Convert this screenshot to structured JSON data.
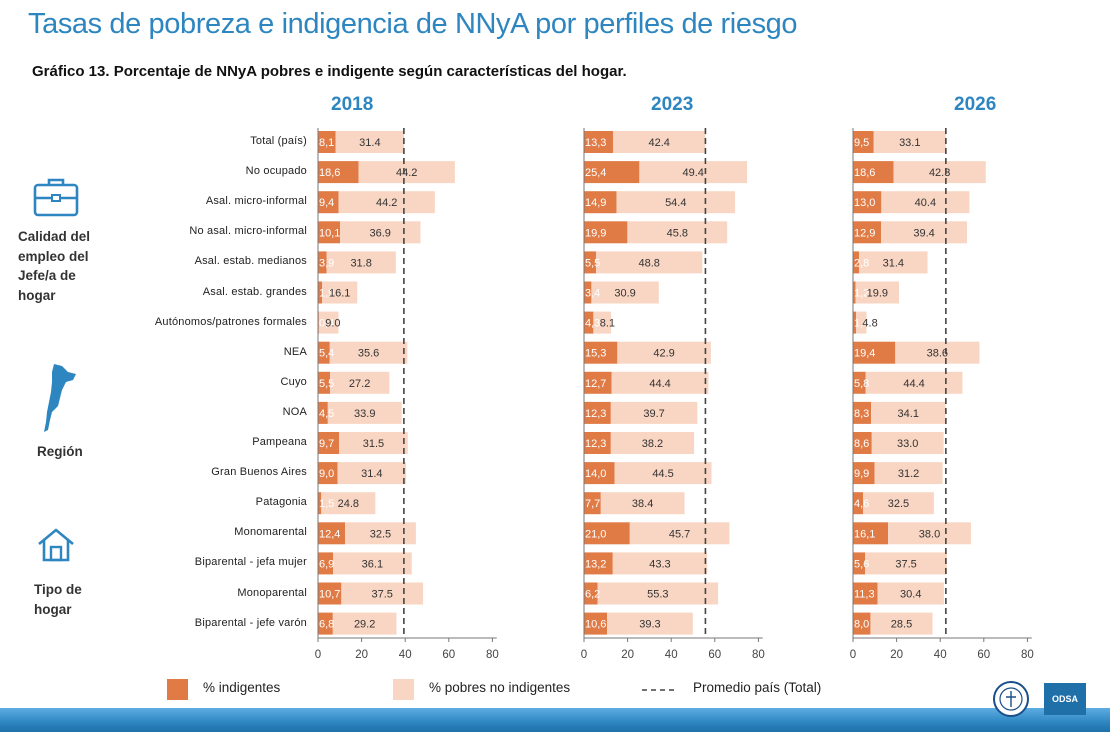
{
  "header": {
    "title": "Tasas de pobreza e indigencia de NNyA por perfiles de riesgo",
    "subtitle": "Gráfico 13. Porcentaje de NNyA pobres e indigente según características del hogar."
  },
  "groups": [
    {
      "label_lines": [
        "Calidad del",
        "empleo del",
        "Jefe/a de",
        "hogar"
      ],
      "icon": "briefcase-icon"
    },
    {
      "label_lines": [
        "Región"
      ],
      "icon": "argentina-map-icon"
    },
    {
      "label_lines": [
        "Tipo de",
        "hogar"
      ],
      "icon": "house-icon"
    }
  ],
  "legend": {
    "indigentes": "% indigentes",
    "pobres": "% pobres no indigentes",
    "promedio": "Promedio país (Total)"
  },
  "logos": {
    "odsa": "ODSA"
  },
  "colors": {
    "indigentes": "#e07b46",
    "pobres": "#f9d6c3",
    "accent": "#2e86c1"
  },
  "chart_data": {
    "type": "bar",
    "orientation": "horizontal",
    "stacked": true,
    "categories": [
      "Total (país)",
      "No ocupado",
      "Asal. micro-informal",
      "No asal. micro-informal",
      "Asal. estab. medianos",
      "Asal. estab. grandes",
      "Autónomos/patrones formales",
      "NEA",
      "Cuyo",
      "NOA",
      "Pampeana",
      "Gran Buenos Aires",
      "Patagonia",
      "Monomarental",
      "Biparental - jefa mujer",
      "Monoparental",
      "Biparental - jefe varón"
    ],
    "xlim": [
      0,
      80
    ],
    "xticks": [
      "0",
      "20",
      "40",
      "60",
      "80"
    ],
    "panels": [
      {
        "title": "2018",
        "average": 39.4,
        "indigentes": [
          8.1,
          18.6,
          9.4,
          10.1,
          3.9,
          1.9,
          0.4,
          5.4,
          5.5,
          4.5,
          9.7,
          9.0,
          1.5,
          12.4,
          6.9,
          10.7,
          6.8
        ],
        "indigentes_labels": [
          "8,1",
          "18,6",
          "9,4",
          "10,1",
          "3,9",
          "1,9",
          "0,4",
          "5,4",
          "5,5",
          "4,5",
          "9,7",
          "9,0",
          "1,5",
          "12,4",
          "6,9",
          "10,7",
          "6,8"
        ],
        "pobres": [
          31.4,
          44.2,
          44.2,
          36.9,
          31.8,
          16.1,
          9.0,
          35.6,
          27.2,
          33.9,
          31.5,
          31.4,
          24.8,
          32.5,
          36.1,
          37.5,
          29.2
        ],
        "pobres_labels": [
          "31.4",
          "44.2",
          "44.2",
          "36.9",
          "31.8",
          "16.1",
          "9.0",
          "35.6",
          "27.2",
          "33.9",
          "31.5",
          "31.4",
          "24.8",
          "32.5",
          "36.1",
          "37.5",
          "29.2"
        ]
      },
      {
        "title": "2023",
        "average": 55.7,
        "indigentes": [
          13.3,
          25.4,
          14.9,
          19.9,
          5.5,
          3.4,
          4.3,
          15.3,
          12.7,
          12.3,
          12.3,
          14.0,
          7.7,
          21.0,
          13.2,
          6.2,
          10.6
        ],
        "indigentes_labels": [
          "13,3",
          "25,4",
          "14,9",
          "19,9",
          "5,5",
          "3,4",
          "4,3",
          "15,3",
          "12,7",
          "12,3",
          "12,3",
          "14,0",
          "7,7",
          "21,0",
          "13,2",
          "6,2",
          "10,6"
        ],
        "pobres": [
          42.4,
          49.4,
          54.4,
          45.8,
          48.8,
          30.9,
          8.1,
          42.9,
          44.4,
          39.7,
          38.2,
          44.5,
          38.4,
          45.7,
          43.3,
          55.3,
          39.3
        ],
        "pobres_labels": [
          "42.4",
          "49.4",
          "54.4",
          "45.8",
          "48.8",
          "30.9",
          "8.1",
          "42.9",
          "44.4",
          "39.7",
          "38.2",
          "44.5",
          "38.4",
          "45.7",
          "43.3",
          "55.3",
          "39.3"
        ]
      },
      {
        "title": "2026",
        "average": 42.6,
        "indigentes": [
          9.5,
          18.6,
          13.0,
          12.9,
          2.8,
          1.2,
          1.4,
          19.4,
          5.8,
          8.3,
          8.6,
          9.9,
          4.6,
          16.1,
          5.6,
          11.3,
          8.0
        ],
        "indigentes_labels": [
          "9,5",
          "18,6",
          "13,0",
          "12,9",
          "2,8",
          "1,2",
          "1,4",
          "19,4",
          "5,8",
          "8,3",
          "8,6",
          "9,9",
          "4,6",
          "16,1",
          "5,6",
          "11,3",
          "8,0"
        ],
        "pobres": [
          33.1,
          42.3,
          40.4,
          39.4,
          31.4,
          19.9,
          4.8,
          38.6,
          44.4,
          34.1,
          33.0,
          31.2,
          32.5,
          38.0,
          37.5,
          30.4,
          28.5
        ],
        "pobres_labels": [
          "33.1",
          "42.3",
          "40.4",
          "39.4",
          "31.4",
          "19.9",
          "4.8",
          "38.6",
          "44.4",
          "34.1",
          "33.0",
          "31.2",
          "32.5",
          "38.0",
          "37.5",
          "30.4",
          "28.5"
        ]
      }
    ],
    "legend_position": "bottom",
    "grid": false
  }
}
